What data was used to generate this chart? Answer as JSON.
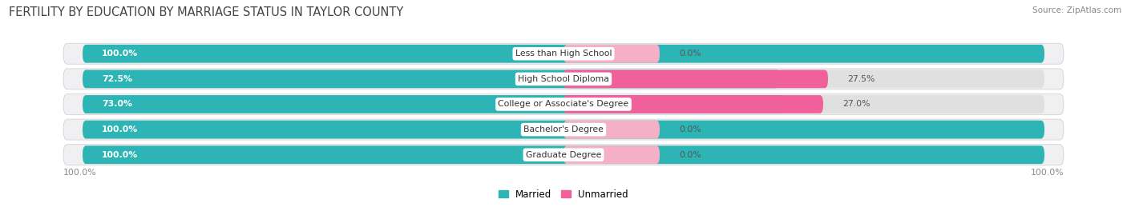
{
  "title": "FERTILITY BY EDUCATION BY MARRIAGE STATUS IN TAYLOR COUNTY",
  "source": "Source: ZipAtlas.com",
  "categories": [
    "Less than High School",
    "High School Diploma",
    "College or Associate's Degree",
    "Bachelor's Degree",
    "Graduate Degree"
  ],
  "married": [
    100.0,
    72.5,
    73.0,
    100.0,
    100.0
  ],
  "unmarried": [
    0.0,
    27.5,
    27.0,
    0.0,
    0.0
  ],
  "unmarried_display": [
    0.0,
    27.5,
    27.0,
    0.0,
    0.0
  ],
  "unmarried_stub": [
    10.0,
    27.5,
    27.0,
    10.0,
    10.0
  ],
  "married_color": "#2db5b5",
  "unmarried_color_strong": "#f0609a",
  "unmarried_color_light": "#f5b0c8",
  "bar_bg_color": "#e0e0e0",
  "row_bg_color": "#f0f0f2",
  "title_fontsize": 10.5,
  "source_fontsize": 7.5,
  "legend_labels": [
    "Married",
    "Unmarried"
  ],
  "label_split": 50.0,
  "total_width": 100.0
}
